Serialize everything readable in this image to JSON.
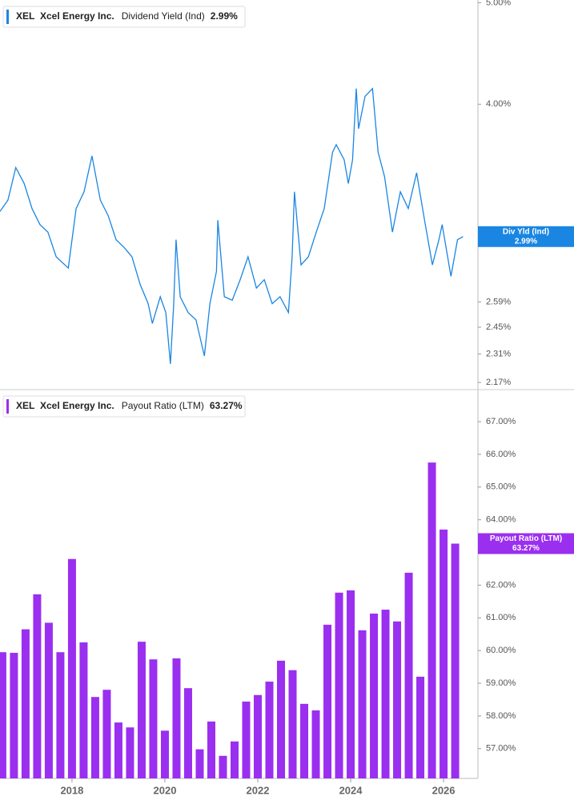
{
  "chart_data": [
    {
      "type": "line",
      "ticker": "XEL",
      "company": "Xcel Energy Inc.",
      "tag_label": "Div Yld (Ind)",
      "last_value_label": "2.99%",
      "log_scale": true,
      "x": [
        2016.45,
        2016.62,
        2016.79,
        2016.97,
        2017.14,
        2017.31,
        2017.48,
        2017.66,
        2017.92,
        2018.09,
        2018.26,
        2018.43,
        2018.61,
        2018.78,
        2018.95,
        2019.12,
        2019.29,
        2019.47,
        2019.64,
        2019.73,
        2019.9,
        2020.02,
        2020.12,
        2020.19,
        2020.24,
        2020.33,
        2020.5,
        2020.67,
        2020.85,
        2020.97,
        2021.11,
        2021.14,
        2021.28,
        2021.45,
        2021.62,
        2021.79,
        2021.97,
        2022.14,
        2022.31,
        2022.48,
        2022.66,
        2022.74,
        2022.79,
        2022.93,
        2023.09,
        2023.26,
        2023.43,
        2023.61,
        2023.69,
        2023.86,
        2023.95,
        2024.04,
        2024.12,
        2024.17,
        2024.31,
        2024.47,
        2024.59,
        2024.73,
        2024.9,
        2025.07,
        2025.24,
        2025.42,
        2025.59,
        2025.76,
        2025.9,
        2025.97,
        2026.16,
        2026.3,
        2026.42
      ],
      "series": [
        {
          "name": "Dividend Yield (Ind)",
          "color": "#1a86e2",
          "values": [
            3.16,
            3.24,
            3.48,
            3.36,
            3.18,
            3.07,
            3.02,
            2.86,
            2.79,
            3.18,
            3.3,
            3.57,
            3.24,
            3.13,
            2.97,
            2.92,
            2.86,
            2.69,
            2.58,
            2.47,
            2.62,
            2.53,
            2.26,
            2.58,
            2.97,
            2.62,
            2.53,
            2.49,
            2.3,
            2.58,
            2.77,
            3.1,
            2.62,
            2.6,
            2.72,
            2.86,
            2.67,
            2.72,
            2.58,
            2.62,
            2.53,
            2.86,
            3.3,
            2.81,
            2.86,
            3.02,
            3.18,
            3.6,
            3.66,
            3.54,
            3.36,
            3.54,
            4.14,
            3.79,
            4.07,
            4.14,
            3.6,
            3.41,
            3.02,
            3.3,
            3.18,
            3.44,
            3.1,
            2.81,
            2.97,
            3.07,
            2.74,
            2.97,
            2.99
          ]
        }
      ],
      "xlim": [
        2016.45,
        2026.74
      ],
      "ylim": [
        2.136,
        5.03
      ],
      "yticks": [
        {
          "value": 2.17,
          "label": "2.17%"
        },
        {
          "value": 2.31,
          "label": "2.31%"
        },
        {
          "value": 2.45,
          "label": "2.45%"
        },
        {
          "value": 2.59,
          "label": "2.59%"
        },
        {
          "value": 4,
          "label": "4.00%"
        },
        {
          "value": 5,
          "label": "5.00%"
        }
      ]
    },
    {
      "type": "bar",
      "ticker": "XEL",
      "company": "Xcel Energy Inc.",
      "tag_label": "Payout Ratio (LTM)",
      "last_value_label": "63.27%",
      "x": [
        2016.5,
        2016.75,
        2017,
        2017.25,
        2017.5,
        2017.75,
        2018,
        2018.25,
        2018.5,
        2018.75,
        2019,
        2019.25,
        2019.5,
        2019.75,
        2020,
        2020.25,
        2020.5,
        2020.75,
        2021,
        2021.25,
        2021.5,
        2021.75,
        2022,
        2022.25,
        2022.5,
        2022.75,
        2023,
        2023.25,
        2023.5,
        2023.75,
        2024,
        2024.25,
        2024.5,
        2024.75,
        2025,
        2025.25,
        2025.5,
        2025.75,
        2026,
        2026.25
      ],
      "series": [
        {
          "name": "Payout Ratio (LTM)",
          "color": "#9a2ff0",
          "values": [
            59.95,
            59.93,
            60.65,
            61.72,
            60.85,
            59.95,
            62.8,
            60.25,
            58.58,
            58.8,
            57.8,
            57.65,
            60.27,
            59.73,
            57.55,
            59.76,
            58.85,
            56.98,
            57.83,
            56.78,
            57.22,
            58.44,
            58.64,
            59.05,
            59.69,
            59.4,
            58.37,
            58.17,
            60.79,
            61.77,
            61.84,
            60.62,
            61.13,
            61.25,
            60.89,
            62.38,
            59.2,
            65.75,
            63.7,
            63.27
          ]
        }
      ],
      "xlim": [
        2016.45,
        2026.74
      ],
      "ylim": [
        56.09,
        67.98
      ],
      "xticks": [
        2018,
        2020,
        2022,
        2024,
        2026
      ],
      "yticks": [
        {
          "value": 57,
          "label": "57.00%"
        },
        {
          "value": 58,
          "label": "58.00%"
        },
        {
          "value": 59,
          "label": "59.00%"
        },
        {
          "value": 60,
          "label": "60.00%"
        },
        {
          "value": 61,
          "label": "61.00%"
        },
        {
          "value": 62,
          "label": "62.00%"
        },
        {
          "value": 64,
          "label": "64.00%"
        },
        {
          "value": 65,
          "label": "65.00%"
        },
        {
          "value": 66,
          "label": "66.00%"
        },
        {
          "value": 67,
          "label": "67.00%"
        }
      ]
    }
  ]
}
